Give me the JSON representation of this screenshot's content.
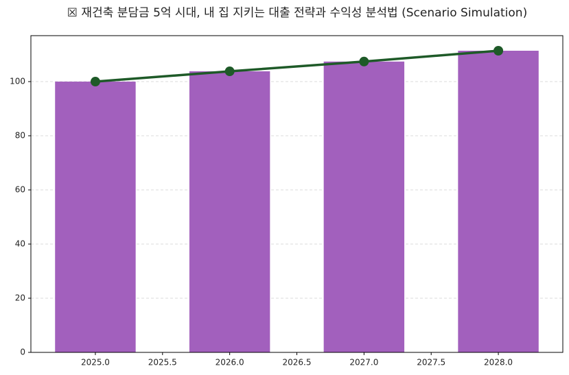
{
  "chart_data": {
    "type": "combo",
    "title": "☒ 재건축 분담금 5억 시대, 내 집 지키는 대출 전략과 수익성 분석법 (Scenario Simulation)",
    "x": [
      2025,
      2026,
      2027,
      2028
    ],
    "series": [
      {
        "type": "bar",
        "color": "#a260bd",
        "values": [
          100,
          103.8,
          107.4,
          111.4
        ]
      },
      {
        "type": "line",
        "color": "#1e5a28",
        "values": [
          100,
          103.8,
          107.4,
          111.4
        ]
      }
    ],
    "xlim": [
      2024.52,
      2028.48
    ],
    "xticks": [
      {
        "value": 2025,
        "label": "2025.0"
      },
      {
        "value": 2025.5,
        "label": "2025.5"
      },
      {
        "value": 2026,
        "label": "2026.0"
      },
      {
        "value": 2026.5,
        "label": "2026.5"
      },
      {
        "value": 2027,
        "label": "2027.0"
      },
      {
        "value": 2027.5,
        "label": "2027.5"
      },
      {
        "value": 2028,
        "label": "2028.0"
      }
    ],
    "ylim": [
      0,
      116.97
    ],
    "yticks": [
      0,
      20,
      40,
      60,
      80,
      100
    ],
    "grid": true
  }
}
